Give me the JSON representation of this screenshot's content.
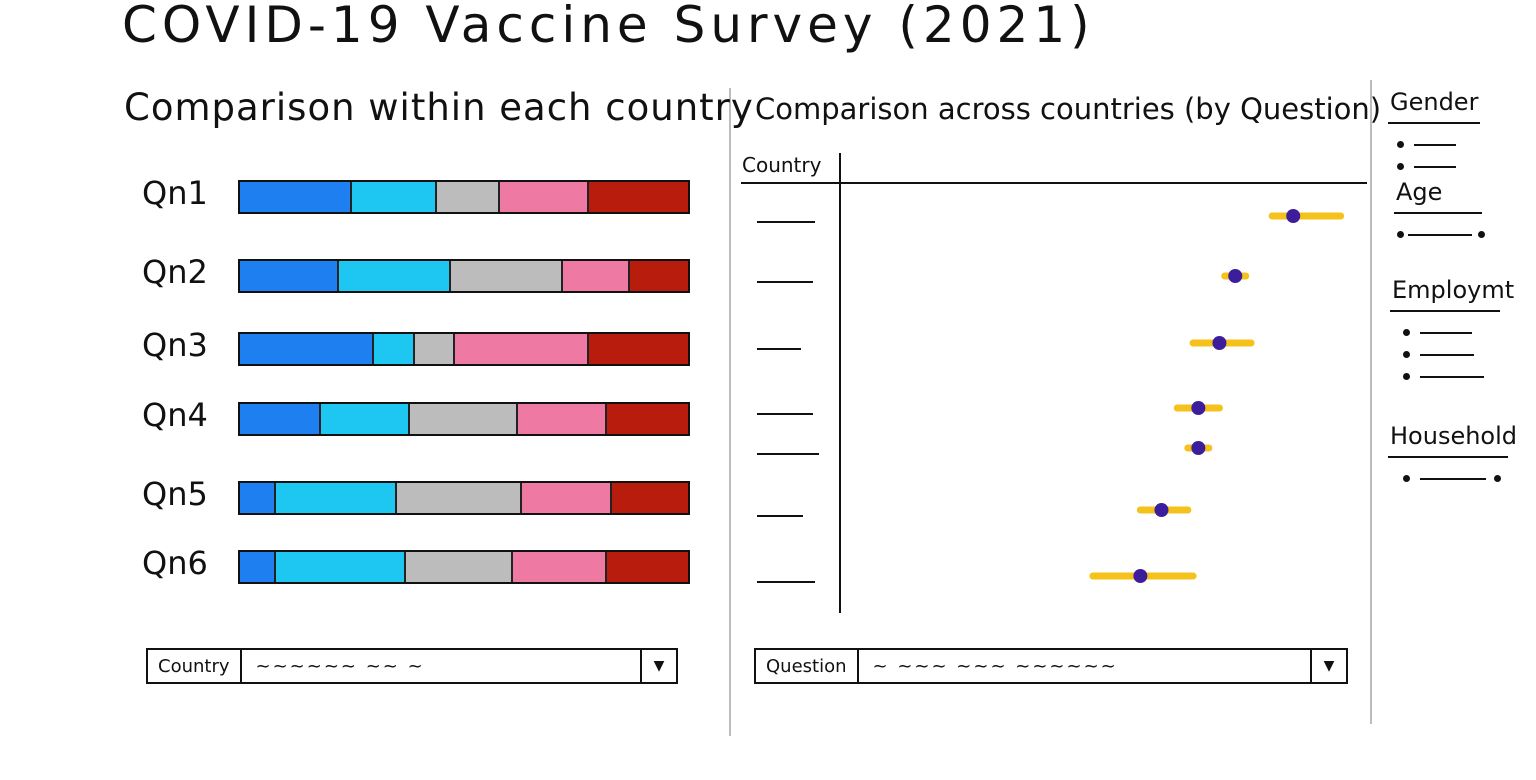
{
  "title": "COVID-19 Vaccine Survey (2021)",
  "left_panel": {
    "title": "Comparison within each country",
    "dropdown": {
      "label": "Country",
      "value": "~~~~~~ ~~ ~"
    }
  },
  "right_panel": {
    "title": "Comparison across countries (by Question)",
    "axis_label": "Country",
    "dropdown": {
      "label": "Question",
      "value": "~ ~~~ ~~~ ~~~~~~"
    }
  },
  "legend": {
    "sections": [
      "Gender",
      "Age",
      "Employmt",
      "Household"
    ]
  },
  "colors": {
    "seg1": "#1e7ff0",
    "seg2": "#1ec6f2",
    "seg3": "#bcbcbc",
    "seg4": "#ee7aa4",
    "seg5": "#b81c0c",
    "dot": "#3c1e9c",
    "ci": "#f4c21a"
  },
  "chart_data": [
    {
      "type": "bar",
      "stacked": true,
      "categories": [
        "Qn1",
        "Qn2",
        "Qn3",
        "Qn4",
        "Qn5",
        "Qn6"
      ],
      "series": [
        {
          "values": [
            25,
            22,
            30,
            18,
            8,
            8
          ]
        },
        {
          "values": [
            19,
            25,
            9,
            20,
            27,
            29
          ]
        },
        {
          "values": [
            14,
            25,
            9,
            24,
            28,
            24
          ]
        },
        {
          "values": [
            20,
            15,
            30,
            20,
            20,
            21
          ]
        },
        {
          "values": [
            22,
            13,
            22,
            18,
            17,
            18
          ]
        }
      ]
    },
    {
      "type": "scatter",
      "ylabel": "Country",
      "points": [
        {
          "value": 0.86,
          "low": 0.82,
          "high": 0.95
        },
        {
          "value": 0.75,
          "low": 0.73,
          "high": 0.77
        },
        {
          "value": 0.72,
          "low": 0.67,
          "high": 0.78
        },
        {
          "value": 0.68,
          "low": 0.64,
          "high": 0.72
        },
        {
          "value": 0.68,
          "low": 0.66,
          "high": 0.7
        },
        {
          "value": 0.61,
          "low": 0.57,
          "high": 0.66
        },
        {
          "value": 0.57,
          "low": 0.48,
          "high": 0.67
        }
      ]
    }
  ]
}
